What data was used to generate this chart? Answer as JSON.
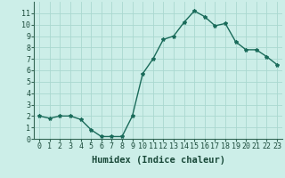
{
  "x": [
    0,
    1,
    2,
    3,
    4,
    5,
    6,
    7,
    8,
    9,
    10,
    11,
    12,
    13,
    14,
    15,
    16,
    17,
    18,
    19,
    20,
    21,
    22,
    23
  ],
  "y": [
    2.0,
    1.8,
    2.0,
    2.0,
    1.7,
    0.8,
    0.2,
    0.2,
    0.2,
    2.0,
    5.7,
    7.0,
    8.7,
    9.0,
    10.2,
    11.2,
    10.7,
    9.9,
    10.1,
    8.5,
    7.8,
    7.8,
    7.2,
    6.5
  ],
  "xlabel": "Humidex (Indice chaleur)",
  "line_color": "#1a6b5a",
  "marker": "*",
  "marker_size": 3,
  "bg_color": "#cceee8",
  "grid_color": "#aad8d0",
  "xlim": [
    -0.5,
    23.5
  ],
  "ylim": [
    0,
    12
  ],
  "xticks": [
    0,
    1,
    2,
    3,
    4,
    5,
    6,
    7,
    8,
    9,
    10,
    11,
    12,
    13,
    14,
    15,
    16,
    17,
    18,
    19,
    20,
    21,
    22,
    23
  ],
  "yticks": [
    0,
    1,
    2,
    3,
    4,
    5,
    6,
    7,
    8,
    9,
    10,
    11
  ],
  "tick_fontsize": 6,
  "xlabel_fontsize": 7.5,
  "line_width": 1.0
}
